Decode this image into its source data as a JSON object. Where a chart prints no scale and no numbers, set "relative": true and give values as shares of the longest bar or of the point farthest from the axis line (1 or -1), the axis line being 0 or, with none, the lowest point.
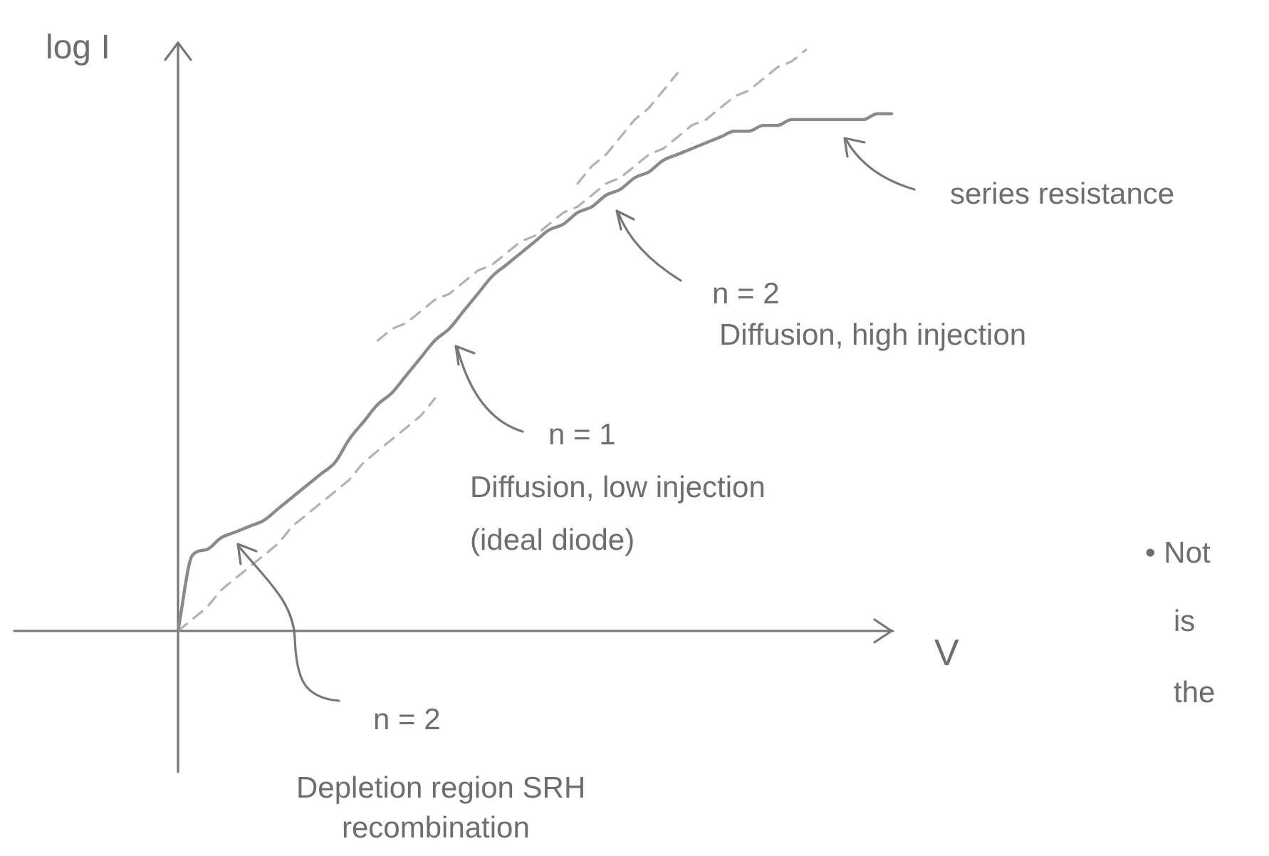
{
  "chart_data": {
    "type": "line",
    "relative": true,
    "xlabel": "V",
    "ylabel": "log I",
    "tick_labels": false,
    "categories": [
      null,
      null,
      null,
      null,
      null,
      null,
      null,
      null,
      null,
      null,
      null,
      null,
      null,
      null,
      null,
      null,
      null,
      null,
      null,
      null,
      null,
      null,
      null,
      null,
      null,
      null,
      null,
      null,
      null,
      null,
      null,
      null,
      null,
      null,
      null,
      null,
      null,
      null,
      null,
      null,
      null,
      null,
      null,
      null,
      null,
      null,
      null,
      null,
      null,
      null,
      null
    ],
    "series": [
      {
        "color": "#8a8a8a",
        "values": [
          0,
          0.13,
          0.14,
          0.16,
          0.17,
          0.18,
          0.19,
          0.21,
          0.23,
          0.25,
          0.27,
          0.29,
          0.33,
          0.36,
          0.39,
          0.41,
          0.44,
          0.47,
          0.5,
          0.52,
          0.55,
          0.58,
          0.61,
          0.63,
          0.65,
          0.67,
          0.69,
          0.7,
          0.72,
          0.73,
          0.75,
          0.76,
          0.78,
          0.79,
          0.81,
          0.82,
          0.83,
          0.84,
          0.85,
          0.86,
          0.86,
          0.87,
          0.87,
          0.88,
          0.88,
          0.88,
          0.88,
          0.88,
          0.88,
          0.89,
          0.89
        ]
      },
      {
        "color": "#b2b2b2",
        "line_style": "dashed",
        "values": [
          0,
          0.02,
          0.04,
          0.07,
          0.09,
          0.11,
          0.13,
          0.15,
          0.18,
          0.2,
          0.22,
          0.24,
          0.26,
          0.29,
          0.31,
          0.33,
          0.35,
          0.37,
          0.4,
          null,
          null,
          null,
          null,
          null,
          null,
          null,
          null,
          null,
          null,
          null,
          null,
          null,
          null,
          null,
          null,
          null,
          null,
          null,
          null,
          null,
          null,
          null,
          null,
          null,
          null,
          null,
          null,
          null,
          null,
          null,
          null
        ]
      },
      {
        "color": "#b2b2b2",
        "line_style": "dashed",
        "values": [
          null,
          null,
          null,
          null,
          null,
          null,
          null,
          null,
          null,
          null,
          null,
          null,
          null,
          null,
          0.5,
          0.52,
          0.53,
          0.55,
          0.57,
          0.58,
          0.6,
          0.62,
          0.63,
          0.65,
          0.67,
          0.68,
          0.7,
          0.72,
          0.73,
          0.75,
          0.77,
          0.78,
          0.8,
          0.82,
          0.83,
          0.85,
          0.87,
          0.88,
          0.9,
          0.92,
          0.93,
          0.95,
          0.97,
          0.98,
          1.0,
          null,
          null,
          null,
          null,
          null,
          null
        ]
      },
      {
        "color": "#b2b2b2",
        "line_style": "dashed",
        "values": [
          null,
          null,
          null,
          null,
          null,
          null,
          null,
          null,
          null,
          null,
          null,
          null,
          null,
          null,
          null,
          null,
          null,
          null,
          null,
          null,
          null,
          null,
          null,
          null,
          null,
          null,
          null,
          null,
          0.77,
          0.8,
          0.82,
          0.85,
          0.88,
          0.9,
          0.93,
          0.96,
          null,
          null,
          null,
          null,
          null,
          null,
          null,
          null,
          null,
          null,
          null,
          null,
          null,
          null,
          null
        ]
      }
    ],
    "annotations": [
      "series resistance",
      "n = 2\nDiffusion, high injection",
      "n = 1\nDiffusion, low injection\n(ideal diode)",
      "n = 2\nDepletion region SRH\nrecombination",
      "• Not\nis\nthe"
    ]
  }
}
